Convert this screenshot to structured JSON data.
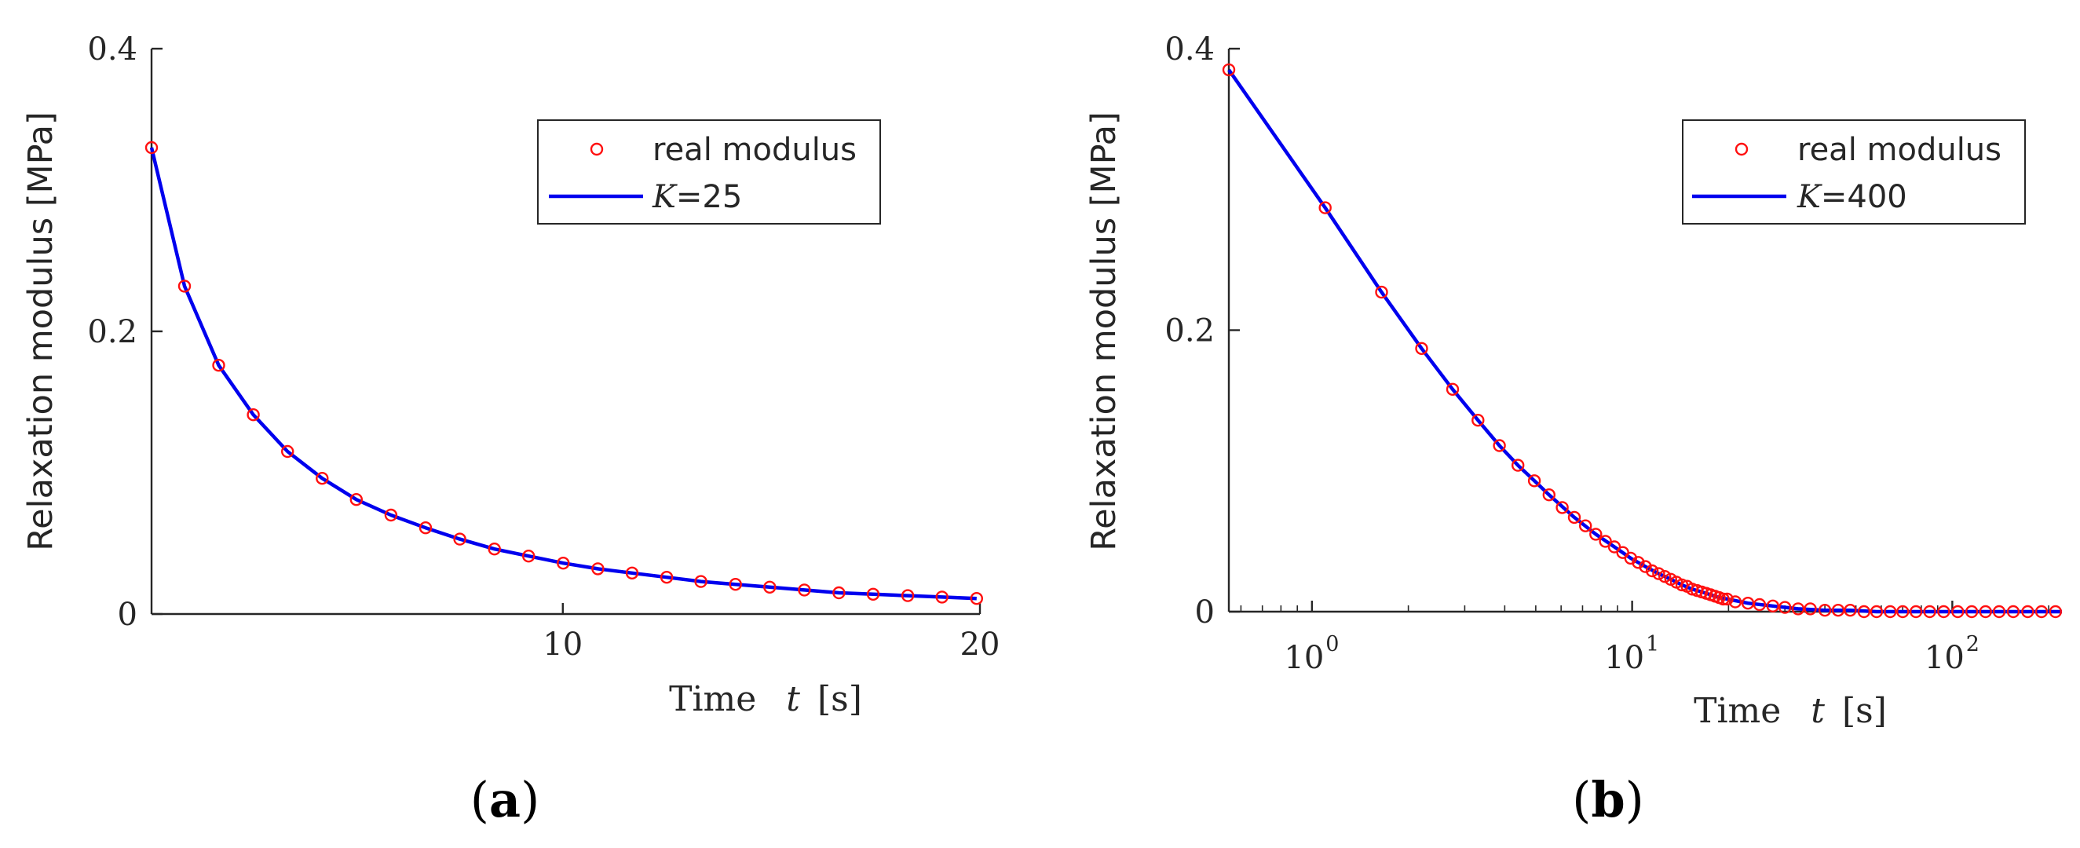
{
  "chart_data": [
    {
      "type": "line",
      "panel_label": "a",
      "ylabel": "Relaxation modulus [MPa]",
      "xlabel_prefix": "Time",
      "xlabel_var": "t",
      "xlabel_unit": "[s]",
      "x_scale": "linear",
      "xlim": [
        0,
        20
      ],
      "ylim": [
        0,
        0.4
      ],
      "xticks": [
        10,
        20
      ],
      "xtick_labels": [
        "10",
        "20"
      ],
      "yticks": [
        0,
        0.2,
        0.4
      ],
      "ytick_labels": [
        "0",
        "0.2",
        "0.4"
      ],
      "legend_position": "top-right",
      "series": [
        {
          "name": "real modulus",
          "style": "markers",
          "color": "#ff1010",
          "x": [
            0.1,
            0.93,
            1.75,
            2.58,
            3.4,
            4.23,
            5.05,
            5.88,
            6.71,
            7.53,
            8.36,
            9.18,
            10.01,
            10.84,
            11.66,
            12.49,
            13.31,
            14.14,
            14.96,
            15.79,
            16.62,
            17.44,
            18.27,
            19.09,
            19.92
          ],
          "y": [
            0.33,
            0.232,
            0.176,
            0.141,
            0.115,
            0.096,
            0.081,
            0.07,
            0.061,
            0.053,
            0.046,
            0.041,
            0.036,
            0.032,
            0.029,
            0.026,
            0.023,
            0.021,
            0.019,
            0.017,
            0.015,
            0.014,
            0.013,
            0.012,
            0.011
          ]
        },
        {
          "name": "K=25",
          "legend_var": "K",
          "legend_value": "=25",
          "style": "line",
          "color": "#0000ee",
          "x": [
            0.1,
            0.93,
            1.75,
            2.58,
            3.4,
            4.23,
            5.05,
            5.88,
            6.71,
            7.53,
            8.36,
            9.18,
            10.01,
            10.84,
            11.66,
            12.49,
            13.31,
            14.14,
            14.96,
            15.79,
            16.62,
            17.44,
            18.27,
            19.09,
            19.92
          ],
          "y": [
            0.33,
            0.232,
            0.176,
            0.141,
            0.115,
            0.096,
            0.081,
            0.07,
            0.061,
            0.053,
            0.046,
            0.041,
            0.036,
            0.032,
            0.029,
            0.026,
            0.023,
            0.021,
            0.019,
            0.017,
            0.015,
            0.014,
            0.013,
            0.012,
            0.011
          ]
        }
      ]
    },
    {
      "type": "line",
      "panel_label": "b",
      "ylabel": "Relaxation modulus [MPa]",
      "xlabel_prefix": "Time",
      "xlabel_var": "t",
      "xlabel_unit": "[s]",
      "x_scale": "log",
      "xlim": [
        0.55,
        220
      ],
      "ylim": [
        0,
        0.4
      ],
      "xticks": [
        1,
        10,
        100
      ],
      "xtick_labels": [
        {
          "base": "10",
          "exp": "0"
        },
        {
          "base": "10",
          "exp": "1"
        },
        {
          "base": "10",
          "exp": "2"
        }
      ],
      "yticks": [
        0,
        0.2,
        0.4
      ],
      "ytick_labels": [
        "0",
        "0.2",
        "0.4"
      ],
      "legend_position": "top-right",
      "series": [
        {
          "name": "real modulus",
          "style": "markers",
          "color": "#ff1010",
          "x": [
            0.55,
            1.1,
            1.65,
            2.2,
            2.75,
            3.3,
            3.85,
            4.4,
            4.95,
            5.5,
            6.05,
            6.6,
            7.15,
            7.7,
            8.25,
            8.8,
            9.35,
            9.9,
            10.45,
            11.0,
            11.55,
            12.1,
            12.65,
            13.2,
            13.75,
            14.3,
            14.85,
            15.4,
            15.95,
            16.5,
            17.05,
            17.6,
            18.15,
            18.7,
            19.25,
            19.8,
            21.0,
            23.0,
            25.0,
            27.5,
            30.0,
            33.0,
            36.0,
            40.0,
            44.0,
            48.0,
            53.0,
            58.0,
            64.0,
            70.0,
            77.0,
            85.0,
            94.0,
            104.0,
            115.0,
            127.0,
            140.0,
            155.0,
            172.0,
            190.0,
            210.0
          ],
          "y": [
            0.385,
            0.287,
            0.227,
            0.187,
            0.158,
            0.136,
            0.118,
            0.104,
            0.093,
            0.083,
            0.074,
            0.067,
            0.061,
            0.055,
            0.05,
            0.046,
            0.042,
            0.038,
            0.035,
            0.032,
            0.029,
            0.027,
            0.025,
            0.023,
            0.021,
            0.019,
            0.018,
            0.016,
            0.015,
            0.014,
            0.013,
            0.012,
            0.011,
            0.01,
            0.009,
            0.009,
            0.007,
            0.006,
            0.005,
            0.004,
            0.003,
            0.002,
            0.002,
            0.001,
            0.001,
            0.001,
            0.0,
            0.0,
            0.0,
            0.0,
            0.0,
            0.0,
            0.0,
            0.0,
            0.0,
            0.0,
            0.0,
            0.0,
            0.0,
            0.0,
            0.0
          ]
        },
        {
          "name": "K=400",
          "legend_var": "K",
          "legend_value": "=400",
          "style": "line",
          "color": "#0000ee",
          "x": [
            0.55,
            1.1,
            1.65,
            2.2,
            2.75,
            3.3,
            3.85,
            4.4,
            4.95,
            5.5,
            6.6,
            7.7,
            8.8,
            9.9,
            11.0,
            12.1,
            13.2,
            14.3,
            15.4,
            16.5,
            17.6,
            18.7,
            19.8,
            23.0,
            27.5,
            33.0,
            40.0,
            48.0,
            58.0,
            70.0,
            85.0,
            104.0,
            127.0,
            155.0,
            190.0,
            220.0
          ],
          "y": [
            0.385,
            0.287,
            0.227,
            0.187,
            0.158,
            0.136,
            0.118,
            0.104,
            0.093,
            0.083,
            0.067,
            0.055,
            0.046,
            0.038,
            0.032,
            0.027,
            0.023,
            0.019,
            0.016,
            0.014,
            0.012,
            0.01,
            0.009,
            0.006,
            0.004,
            0.002,
            0.001,
            0.001,
            0.0,
            0.0,
            0.0,
            0.0,
            0.0,
            0.0,
            0.0,
            0.0
          ]
        }
      ]
    }
  ]
}
